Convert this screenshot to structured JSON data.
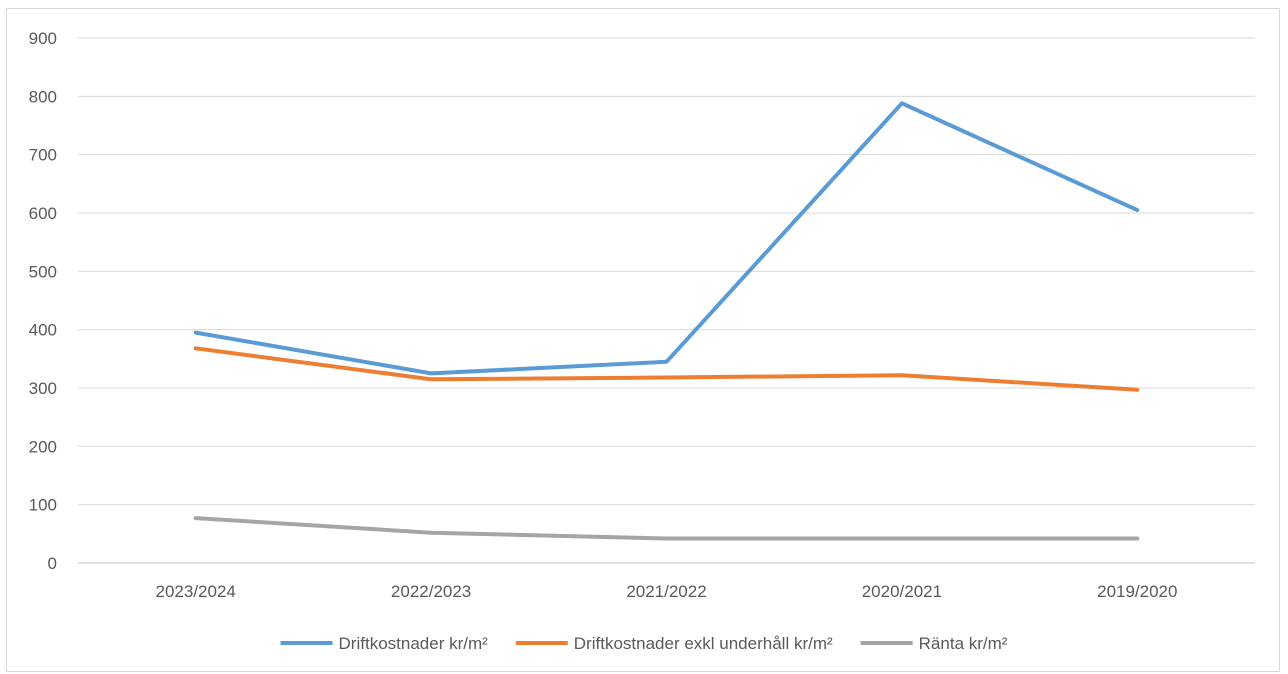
{
  "chart_data": {
    "type": "line",
    "categories": [
      "2023/2024",
      "2022/2023",
      "2021/2022",
      "2020/2021",
      "2019/2020"
    ],
    "series": [
      {
        "name": "Driftkostnader kr/m²",
        "color": "#5B9BD5",
        "values": [
          395,
          325,
          345,
          788,
          605
        ]
      },
      {
        "name": "Driftkostnader exkl underhåll kr/m²",
        "color": "#ED7D31",
        "values": [
          368,
          315,
          318,
          322,
          297
        ]
      },
      {
        "name": "Ränta kr/m²",
        "color": "#A5A5A5",
        "values": [
          77,
          52,
          42,
          42,
          42
        ]
      }
    ],
    "title": "",
    "xlabel": "",
    "ylabel": "",
    "ylim": [
      0,
      900
    ],
    "yticks": [
      0,
      100,
      200,
      300,
      400,
      500,
      600,
      700,
      800,
      900
    ],
    "grid": true,
    "legend": "bottom"
  }
}
